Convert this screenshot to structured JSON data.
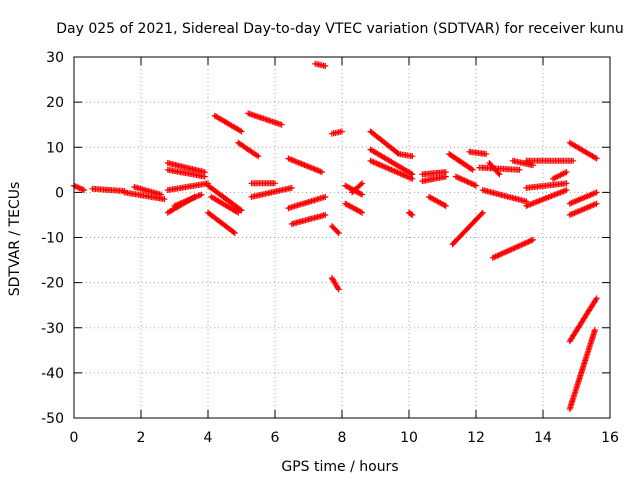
{
  "chart_data": {
    "type": "scatter",
    "title": "Day 025 of 2021, Sidereal Day-to-day VTEC variation (SDTVAR) for receiver kunu",
    "xlabel": "GPS time / hours",
    "ylabel": "SDTVAR / TECUs",
    "xlim": [
      0,
      16
    ],
    "ylim": [
      -50,
      30
    ],
    "grid": true,
    "marker": "+",
    "colors": {
      "series": "#ff0000",
      "grid": "#a0a0a0",
      "axis": "#000000"
    },
    "x_ticks": [
      "0",
      "2",
      "4",
      "6",
      "8",
      "10",
      "12",
      "14",
      "16"
    ],
    "x_tick_values": [
      0,
      2,
      4,
      6,
      8,
      10,
      12,
      14,
      16
    ],
    "y_ticks": [
      "30",
      "20",
      "10",
      "0",
      "-10",
      "-20",
      "-30",
      "-40",
      "-50"
    ],
    "y_tick_values": [
      30,
      20,
      10,
      0,
      -10,
      -20,
      -30,
      -40,
      -50
    ],
    "segments": [
      {
        "x": [
          0.0,
          0.3
        ],
        "y": [
          1.5,
          0.5
        ]
      },
      {
        "x": [
          0.55,
          1.5
        ],
        "y": [
          0.8,
          0.3
        ]
      },
      {
        "x": [
          1.5,
          2.7
        ],
        "y": [
          0.0,
          -1.5
        ]
      },
      {
        "x": [
          1.8,
          2.6
        ],
        "y": [
          1.2,
          -0.5
        ]
      },
      {
        "x": [
          2.8,
          3.9
        ],
        "y": [
          6.5,
          4.5
        ]
      },
      {
        "x": [
          2.8,
          3.9
        ],
        "y": [
          5.0,
          3.5
        ]
      },
      {
        "x": [
          2.8,
          4.0
        ],
        "y": [
          0.5,
          2.0
        ]
      },
      {
        "x": [
          2.8,
          3.6
        ],
        "y": [
          -4.5,
          -1.0
        ]
      },
      {
        "x": [
          3.0,
          3.8
        ],
        "y": [
          -3.0,
          -0.5
        ]
      },
      {
        "x": [
          4.0,
          4.8
        ],
        "y": [
          -4.5,
          -9.0
        ]
      },
      {
        "x": [
          4.0,
          5.0
        ],
        "y": [
          1.5,
          -4.0
        ]
      },
      {
        "x": [
          4.1,
          4.9
        ],
        "y": [
          -1.0,
          -4.5
        ]
      },
      {
        "x": [
          4.2,
          5.0
        ],
        "y": [
          17.0,
          13.5
        ]
      },
      {
        "x": [
          4.9,
          5.5
        ],
        "y": [
          11.0,
          8.0
        ]
      },
      {
        "x": [
          5.2,
          6.2
        ],
        "y": [
          17.5,
          15.0
        ]
      },
      {
        "x": [
          5.3,
          6.0
        ],
        "y": [
          2.0,
          2.0
        ]
      },
      {
        "x": [
          5.3,
          6.5
        ],
        "y": [
          -1.0,
          1.0
        ]
      },
      {
        "x": [
          6.4,
          7.4
        ],
        "y": [
          7.5,
          4.5
        ]
      },
      {
        "x": [
          6.4,
          7.5
        ],
        "y": [
          -3.5,
          -1.0
        ]
      },
      {
        "x": [
          6.5,
          7.5
        ],
        "y": [
          -7.0,
          -5.0
        ]
      },
      {
        "x": [
          7.2,
          7.5
        ],
        "y": [
          28.5,
          28.0
        ]
      },
      {
        "x": [
          7.7,
          7.9
        ],
        "y": [
          -7.5,
          -9.0
        ]
      },
      {
        "x": [
          7.7,
          8.0
        ],
        "y": [
          13.0,
          13.5
        ]
      },
      {
        "x": [
          7.7,
          7.9
        ],
        "y": [
          -19.0,
          -21.5
        ]
      },
      {
        "x": [
          8.1,
          8.6
        ],
        "y": [
          -2.5,
          -4.5
        ]
      },
      {
        "x": [
          8.1,
          8.6
        ],
        "y": [
          1.5,
          -0.5
        ]
      },
      {
        "x": [
          8.3,
          8.6
        ],
        "y": [
          0.0,
          2.0
        ]
      },
      {
        "x": [
          8.85,
          9.7
        ],
        "y": [
          13.5,
          8.5
        ]
      },
      {
        "x": [
          8.85,
          10.1
        ],
        "y": [
          9.5,
          4.0
        ]
      },
      {
        "x": [
          8.85,
          10.1
        ],
        "y": [
          7.0,
          3.0
        ]
      },
      {
        "x": [
          9.7,
          10.1
        ],
        "y": [
          8.5,
          8.0
        ]
      },
      {
        "x": [
          10.0,
          10.1
        ],
        "y": [
          -4.5,
          -5.0
        ]
      },
      {
        "x": [
          10.4,
          11.1
        ],
        "y": [
          4.0,
          4.5
        ]
      },
      {
        "x": [
          10.4,
          11.1
        ],
        "y": [
          2.5,
          3.5
        ]
      },
      {
        "x": [
          10.6,
          11.1
        ],
        "y": [
          -1.0,
          -3.0
        ]
      },
      {
        "x": [
          11.2,
          11.9
        ],
        "y": [
          8.5,
          5.0
        ]
      },
      {
        "x": [
          11.4,
          12.0
        ],
        "y": [
          3.5,
          1.5
        ]
      },
      {
        "x": [
          11.3,
          12.2
        ],
        "y": [
          -11.5,
          -4.5
        ]
      },
      {
        "x": [
          11.8,
          12.3
        ],
        "y": [
          9.0,
          8.5
        ]
      },
      {
        "x": [
          12.1,
          13.3
        ],
        "y": [
          5.5,
          5.0
        ]
      },
      {
        "x": [
          12.4,
          12.7
        ],
        "y": [
          6.5,
          4.0
        ]
      },
      {
        "x": [
          12.2,
          13.5
        ],
        "y": [
          0.5,
          -2.0
        ]
      },
      {
        "x": [
          12.5,
          13.7
        ],
        "y": [
          -14.5,
          -10.5
        ]
      },
      {
        "x": [
          13.1,
          13.7
        ],
        "y": [
          7.0,
          6.0
        ]
      },
      {
        "x": [
          13.5,
          14.9
        ],
        "y": [
          7.0,
          7.0
        ]
      },
      {
        "x": [
          13.5,
          14.7
        ],
        "y": [
          1.0,
          2.0
        ]
      },
      {
        "x": [
          13.5,
          14.7
        ],
        "y": [
          -3.0,
          0.5
        ]
      },
      {
        "x": [
          14.3,
          14.7
        ],
        "y": [
          3.0,
          4.5
        ]
      },
      {
        "x": [
          14.8,
          15.6
        ],
        "y": [
          11.0,
          7.5
        ]
      },
      {
        "x": [
          14.8,
          15.6
        ],
        "y": [
          -2.5,
          0.0
        ]
      },
      {
        "x": [
          14.8,
          15.6
        ],
        "y": [
          -5.0,
          -2.5
        ]
      },
      {
        "x": [
          14.8,
          15.6
        ],
        "y": [
          -33.0,
          -23.5
        ]
      },
      {
        "x": [
          14.8,
          15.55
        ],
        "y": [
          -48.0,
          -30.5
        ]
      }
    ]
  }
}
